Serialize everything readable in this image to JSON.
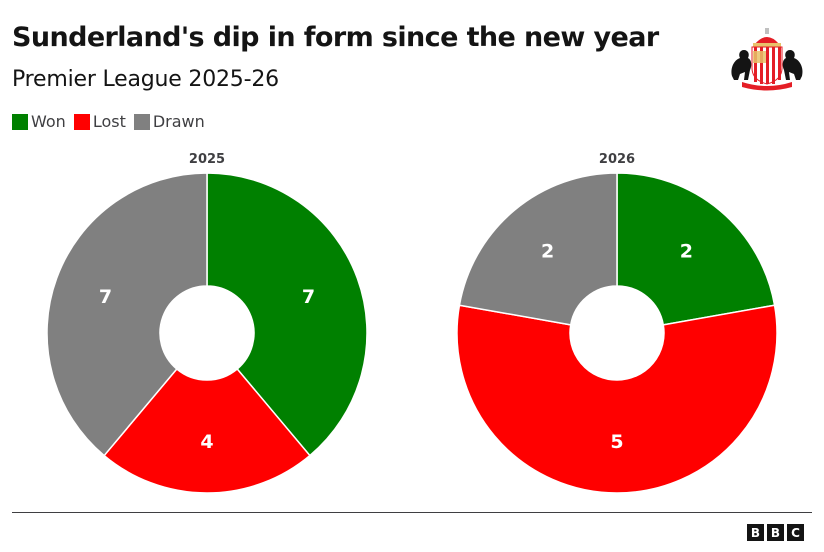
{
  "header": {
    "title": "Sunderland's dip in form since the new year",
    "subtitle": "Premier League 2025-26"
  },
  "legend": [
    {
      "label": "Won",
      "color": "#008000"
    },
    {
      "label": "Lost",
      "color": "#ff0000"
    },
    {
      "label": "Drawn",
      "color": "#808080"
    }
  ],
  "logo": {
    "name": "Sunderland AFC crest",
    "text": "SUNDERLAND A.F.C."
  },
  "footer": {
    "source_logo": [
      "B",
      "B",
      "C"
    ]
  },
  "chart_data": [
    {
      "type": "pie",
      "variant": "donut",
      "title": "2025",
      "categories": [
        "Won",
        "Lost",
        "Drawn"
      ],
      "values": [
        7,
        4,
        7
      ],
      "colors": [
        "#008000",
        "#ff0000",
        "#808080"
      ],
      "start_angle": "12 o'clock",
      "direction": "clockwise",
      "labels_shown": true
    },
    {
      "type": "pie",
      "variant": "donut",
      "title": "2026",
      "categories": [
        "Won",
        "Lost",
        "Drawn"
      ],
      "values": [
        2,
        5,
        2
      ],
      "colors": [
        "#008000",
        "#ff0000",
        "#808080"
      ],
      "start_angle": "12 o'clock",
      "direction": "clockwise",
      "labels_shown": true
    }
  ]
}
